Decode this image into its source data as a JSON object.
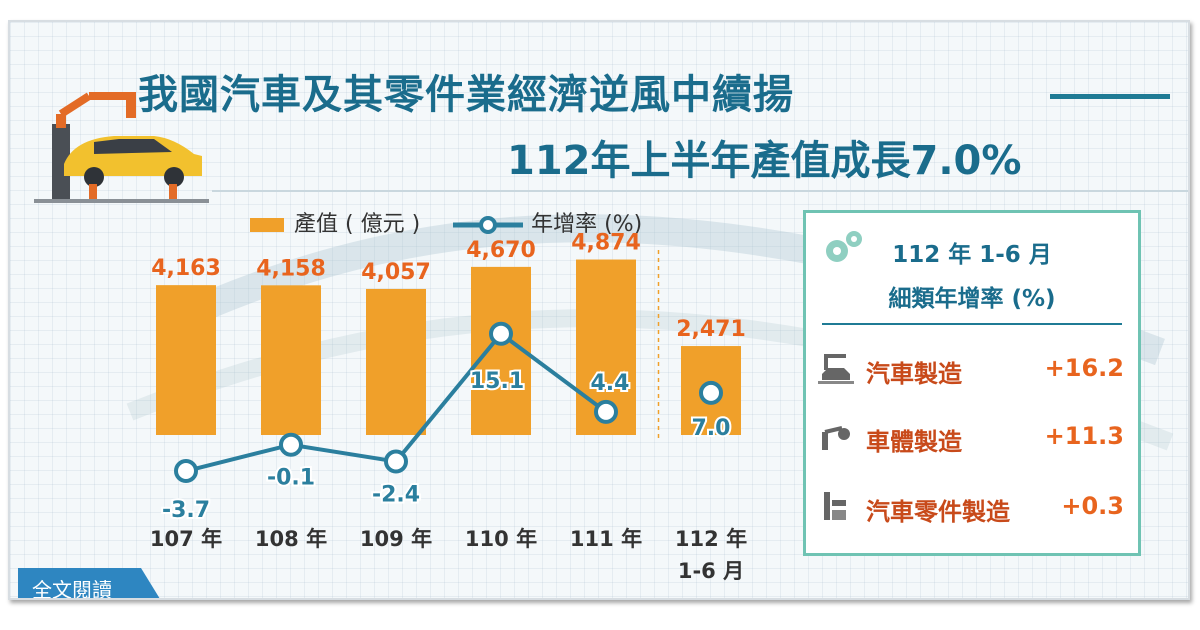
{
  "title_line1": "我國汽車及其零件業經濟逆風中續揚",
  "title_line2": "112年上半年產值成長7.0%",
  "legend": {
    "bar_label": "產值 ( 億元 )",
    "line_label": "年增率 (%)"
  },
  "chart_data": {
    "type": "bar",
    "categories": [
      "107 年",
      "108 年",
      "109 年",
      "110 年",
      "111 年",
      "112 年\n1-6 月"
    ],
    "series": [
      {
        "name": "產值 ( 億元 )",
        "type": "bar",
        "values": [
          4163,
          4158,
          4057,
          4670,
          4874,
          2471
        ],
        "labels": [
          "4,163",
          "4,158",
          "4,057",
          "4,670",
          "4,874",
          "2,471"
        ],
        "color": "#f0a02a"
      },
      {
        "name": "年增率 (%)",
        "type": "line",
        "values": [
          -3.7,
          -0.1,
          -2.4,
          15.1,
          4.4,
          7.0
        ],
        "labels": [
          "-3.7",
          "-0.1",
          "-2.4",
          "15.1",
          "4.4",
          "7.0"
        ],
        "color": "#2b7f9e"
      }
    ],
    "separator_before_last": true
  },
  "panel": {
    "title_line1": "112 年 1-6 月",
    "title_line2": "細類年增率 (%)",
    "items": [
      {
        "label": "汽車製造",
        "value": "+16.2",
        "icon": "car-assembly-icon"
      },
      {
        "label": "車體製造",
        "value": "+11.3",
        "icon": "robot-arm-icon"
      },
      {
        "label": "汽車零件製造",
        "value": "+0.3",
        "icon": "parts-machine-icon"
      }
    ]
  },
  "read_button": "全文閱讀",
  "colors": {
    "accent": "#1a6c8c",
    "bar": "#f0a02a",
    "line": "#2b7f9e",
    "highlight": "#e8641e"
  }
}
